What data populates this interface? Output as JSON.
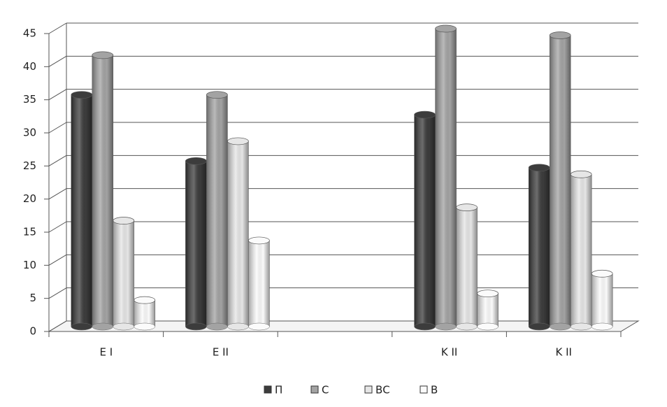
{
  "chart_data": {
    "type": "bar",
    "categories": [
      "E I",
      "E II",
      null,
      "K II",
      "K II"
    ],
    "series": [
      {
        "name": "П",
        "color": "#3c3c3c",
        "values": [
          35,
          25,
          null,
          32,
          24
        ]
      },
      {
        "name": "С",
        "color": "#a3a3a3",
        "values": [
          41,
          35,
          null,
          45,
          44
        ]
      },
      {
        "name": "ВС",
        "color": "#e6e6e6",
        "values": [
          16,
          28,
          null,
          18,
          23
        ]
      },
      {
        "name": "В",
        "color": "#fbfbfb",
        "values": [
          4,
          13,
          null,
          5,
          8
        ]
      }
    ],
    "ylim": [
      0,
      45
    ],
    "yticks": [
      0,
      5,
      10,
      15,
      20,
      25,
      30,
      35,
      40,
      45
    ],
    "grid": true,
    "legend": "bottom"
  }
}
